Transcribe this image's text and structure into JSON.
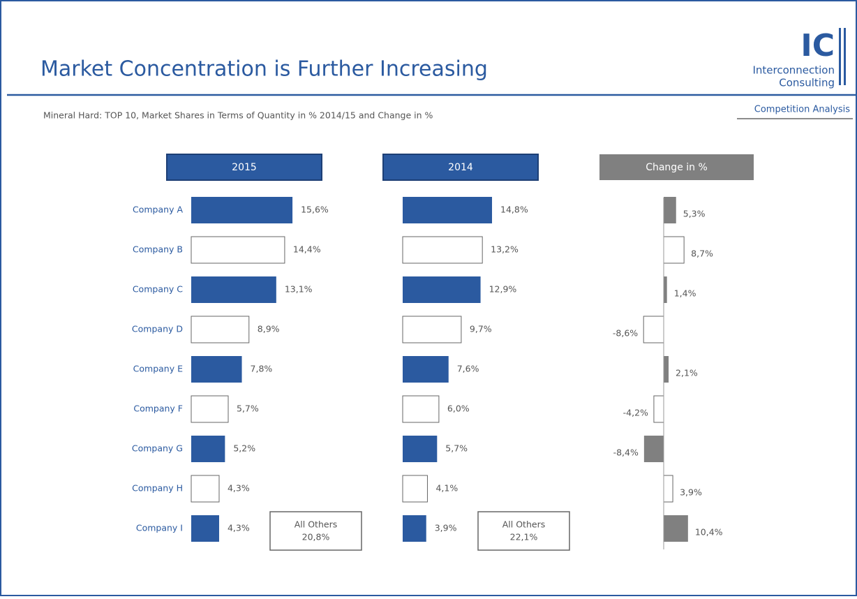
{
  "title": "Market Concentration is Further Increasing",
  "subtitle": "Mineral Hard: TOP 10, Market Shares in Terms of Quantity in % 2014/15  and Change in %",
  "logo": {
    "mark": "IC",
    "line1": "Interconnection",
    "line2": "Consulting"
  },
  "section": "Competition Analysis",
  "chart_data": [
    {
      "type": "bar",
      "orientation": "horizontal",
      "title": "2015",
      "categories": [
        "Company A",
        "Company B",
        "Company C",
        "Company D",
        "Company E",
        "Company F",
        "Company G",
        "Company H",
        "Company I"
      ],
      "values": [
        15.6,
        14.4,
        13.1,
        8.9,
        7.8,
        5.7,
        5.2,
        4.3,
        4.3
      ],
      "value_labels": [
        "15,6%",
        "14,4%",
        "13,1%",
        "8,9%",
        "7,8%",
        "5,7%",
        "5,2%",
        "4,3%",
        "4,3%"
      ],
      "colors": [
        "#2b5aa0",
        "#ffffff",
        "#2b5aa0",
        "#ffffff",
        "#2b5aa0",
        "#ffffff",
        "#2b5aa0",
        "#ffffff",
        "#2b5aa0"
      ],
      "others": {
        "label": "All Others",
        "value": 20.8,
        "value_label": "20,8%"
      }
    },
    {
      "type": "bar",
      "orientation": "horizontal",
      "title": "2014",
      "values": [
        14.8,
        13.2,
        12.9,
        9.7,
        7.6,
        6.0,
        5.7,
        4.1,
        3.9
      ],
      "value_labels": [
        "14,8%",
        "13,2%",
        "12,9%",
        "9,7%",
        "7,6%",
        "6,0%",
        "5,7%",
        "4,1%",
        "3,9%"
      ],
      "colors": [
        "#2b5aa0",
        "#ffffff",
        "#2b5aa0",
        "#ffffff",
        "#2b5aa0",
        "#ffffff",
        "#2b5aa0",
        "#ffffff",
        "#2b5aa0"
      ],
      "others": {
        "label": "All Others",
        "value": 22.1,
        "value_label": "22,1%"
      }
    },
    {
      "type": "bar",
      "orientation": "horizontal",
      "title": "Change in %",
      "values": [
        5.3,
        8.7,
        1.4,
        -8.6,
        2.1,
        -4.2,
        -8.4,
        3.9,
        10.4
      ],
      "value_labels": [
        "5,3%",
        "8,7%",
        "1,4%",
        "-8,6%",
        "2,1%",
        "-4,2%",
        "-8,4%",
        "3,9%",
        "10,4%"
      ],
      "colors": [
        "#808080",
        "#ffffff",
        "#808080",
        "#ffffff",
        "#808080",
        "#ffffff",
        "#808080",
        "#ffffff",
        "#808080"
      ]
    }
  ]
}
